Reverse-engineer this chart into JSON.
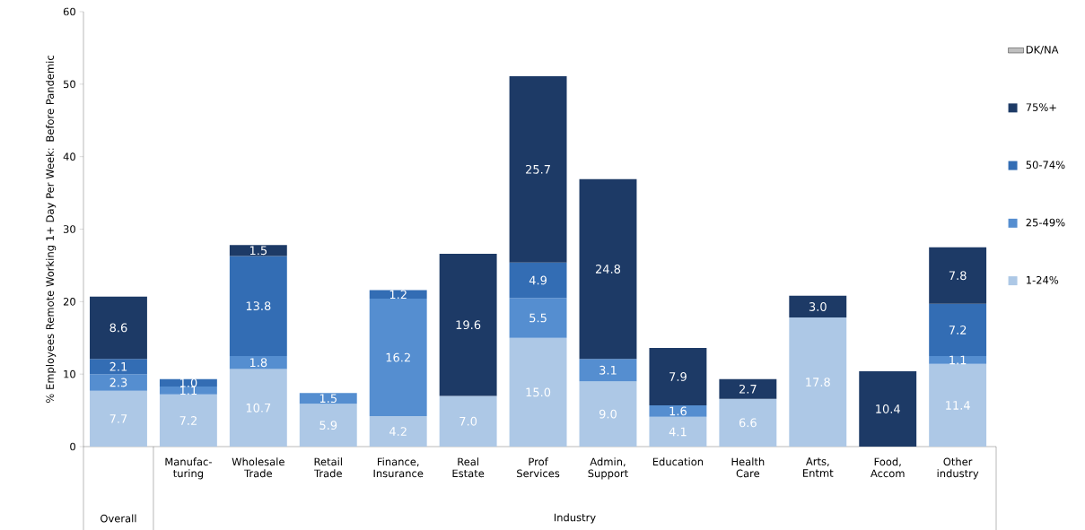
{
  "chart_data": {
    "type": "bar",
    "stacked": true,
    "ylabel": "% Employees Remote Working 1+ Day Per Week: Before Pandemic",
    "categories": [
      null,
      "Manufac-turing",
      "Wholesale Trade",
      "Retail Trade",
      "Finance, Insurance",
      "Real Estate",
      "Prof Services",
      "Admin, Support",
      "Education",
      "Health Care",
      "Arts, Entmt",
      "Food, Accom",
      "Other industry"
    ],
    "series": [
      {
        "name": "1-24%",
        "color": "#adc8e6",
        "values": [
          7.7,
          7.2,
          10.7,
          5.9,
          4.2,
          7.0,
          15.0,
          9.0,
          4.1,
          6.6,
          17.8,
          0.0,
          11.4
        ],
        "value_labels": [
          "7.7",
          "7.2",
          "10.7",
          "5.9",
          "4.2",
          "7.0",
          "15.0",
          "9.0",
          "4.1",
          "6.6",
          "17.8",
          null,
          "11.4"
        ]
      },
      {
        "name": "25-49%",
        "color": "#558ed0",
        "values": [
          2.3,
          1.1,
          1.8,
          1.5,
          16.2,
          0.0,
          5.5,
          3.1,
          1.6,
          0.0,
          0.0,
          0.0,
          1.1
        ],
        "value_labels": [
          "2.3",
          "1.1",
          "1.8",
          "1.5",
          "16.2",
          null,
          "5.5",
          "3.1",
          "1.6",
          null,
          null,
          null,
          "1.1"
        ]
      },
      {
        "name": "50-74%",
        "color": "#336db4",
        "values": [
          2.1,
          1.0,
          13.8,
          0.0,
          1.2,
          0.0,
          4.9,
          0.0,
          0.0,
          0.0,
          0.0,
          0.0,
          7.2
        ],
        "value_labels": [
          "2.1",
          "1.0",
          "13.8",
          null,
          "1.2",
          null,
          "4.9",
          null,
          null,
          null,
          null,
          null,
          "7.2"
        ]
      },
      {
        "name": "75%+",
        "color": "#1d3a66",
        "values": [
          8.6,
          0.0,
          1.5,
          0.0,
          0.0,
          19.6,
          25.7,
          24.8,
          7.9,
          2.7,
          3.0,
          10.4,
          7.8
        ],
        "value_labels": [
          "8.6",
          null,
          "1.5",
          null,
          null,
          "19.6",
          "25.7",
          "24.8",
          "7.9",
          "2.7",
          "3.0",
          "10.4",
          "7.8"
        ]
      },
      {
        "name": "DK/NA",
        "color": "#bfbfbf",
        "values": [
          null,
          null,
          null,
          null,
          null,
          null,
          null,
          null,
          null,
          null,
          null,
          null,
          null
        ]
      }
    ],
    "annotations": [
      "Overall",
      "Industry"
    ],
    "ylim": [
      0,
      60
    ],
    "yticks": [
      0,
      10,
      20,
      30,
      40,
      50,
      60
    ],
    "legend": "right",
    "grid": false
  }
}
